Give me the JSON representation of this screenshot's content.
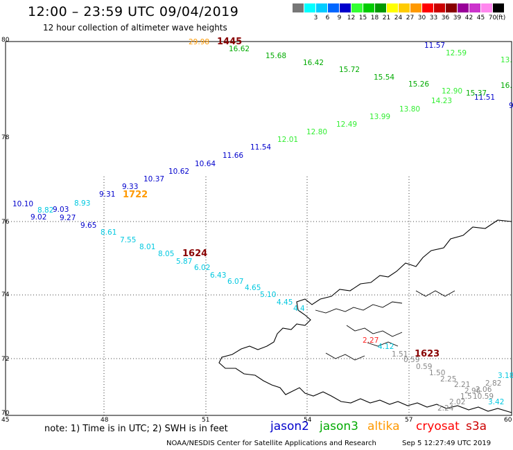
{
  "header": {
    "title": "12:00 – 23:59 UTC 09/04/2019",
    "subtitle": "12 hour collection of altimeter wave heights"
  },
  "legend": {
    "unit": "(ft)",
    "bins": [
      {
        "label": "",
        "color": "#777777"
      },
      {
        "label": "3",
        "color": "#00ffff"
      },
      {
        "label": "6",
        "color": "#00ccff"
      },
      {
        "label": "9",
        "color": "#0066ff"
      },
      {
        "label": "12",
        "color": "#0000cc"
      },
      {
        "label": "15",
        "color": "#33ff33"
      },
      {
        "label": "18",
        "color": "#00cc00"
      },
      {
        "label": "21",
        "color": "#009900"
      },
      {
        "label": "24",
        "color": "#ffff00"
      },
      {
        "label": "27",
        "color": "#ffcc00"
      },
      {
        "label": "30",
        "color": "#ff9900"
      },
      {
        "label": "33",
        "color": "#ff0000"
      },
      {
        "label": "36",
        "color": "#cc0000"
      },
      {
        "label": "39",
        "color": "#880000"
      },
      {
        "label": "42",
        "color": "#990099"
      },
      {
        "label": "45",
        "color": "#cc33cc"
      },
      {
        "label": "70",
        "color": "#ff88ee"
      },
      {
        "label": "",
        "color": "#000000"
      }
    ]
  },
  "axes": {
    "y_labels": [
      "80",
      "78",
      "76",
      "74",
      "72",
      "70"
    ],
    "x_labels": [
      "45",
      "48",
      "51",
      "54",
      "57",
      "60"
    ]
  },
  "timestamps": [
    {
      "text": "1445",
      "color": "#880000"
    },
    {
      "text": "1722",
      "color": "#ff9900"
    },
    {
      "text": "1624",
      "color": "#880000"
    },
    {
      "text": "1623",
      "color": "#880000"
    }
  ],
  "tracks": {
    "blue": {
      "color": "#0000cc",
      "labels": [
        "11.57",
        "11.51",
        "9",
        "11.54",
        "11.66",
        "10.64",
        "10.62",
        "10.37",
        "9.33",
        "9.31",
        "10.10",
        "9.03",
        "9.02",
        "9.27",
        "9.65"
      ]
    },
    "green": {
      "color": "#00aa00",
      "labels": [
        "16.62",
        "15.68",
        "16.42",
        "15.72",
        "15.54",
        "15.26",
        "15.37",
        "16."
      ]
    },
    "lightgreen": {
      "color": "#33ee33",
      "labels": [
        "12.59",
        "13.",
        "12.90",
        "14.23",
        "13.80",
        "13.99",
        "12.49",
        "12.80",
        "12.01"
      ]
    },
    "cyan": {
      "color": "#00c8e0",
      "labels": [
        "8.93",
        "8.82",
        "8.61",
        "7.55",
        "8.01",
        "8.05",
        "5.87",
        "6.02",
        "6.43",
        "6.07",
        "4.65",
        "5.10",
        "4.45",
        "4.4",
        "4.12",
        "3.18",
        "3.42"
      ]
    },
    "gray": {
      "color": "#888888",
      "labels": [
        "1.51",
        "0.59",
        "0.59",
        "1.50",
        "2.25",
        "2.21",
        "2.82",
        "2.96",
        "2.06",
        "1.5",
        "10.59",
        "2.02",
        "2.24"
      ]
    },
    "other": [
      {
        "text": "29.98",
        "color": "#ff9900"
      },
      {
        "text": "2.27",
        "color": "#ff2222"
      }
    ]
  },
  "footer": {
    "note": "note: 1) Time is in UTC; 2) SWH is in feet",
    "satellites": [
      {
        "name": "jason2",
        "color": "#0000cc"
      },
      {
        "name": "jason3",
        "color": "#00aa00"
      },
      {
        "name": "altika",
        "color": "#ff9900"
      },
      {
        "name": "cryosat",
        "color": "#ff0000"
      },
      {
        "name": "s3a",
        "color": "#cc0000"
      }
    ],
    "credit": "NOAA/NESDIS Center for Satellite Applications and Research",
    "stamp": "Sep  5 12:27:49 UTC 2019"
  }
}
